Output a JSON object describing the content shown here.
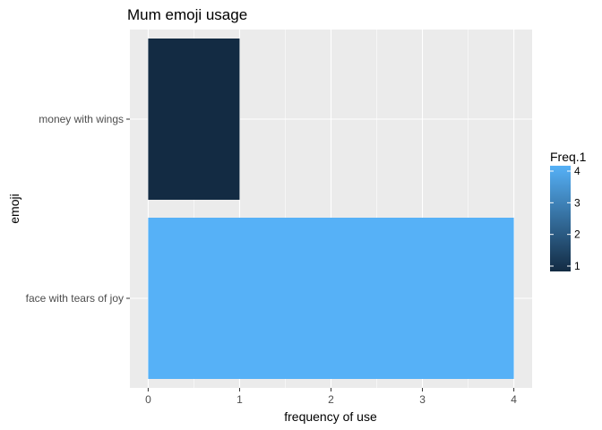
{
  "chart_data": {
    "type": "bar",
    "orientation": "horizontal",
    "title": "Mum emoji usage",
    "xlabel": "frequency of use",
    "ylabel": "emoji",
    "categories": [
      "face with tears of joy",
      "money with wings"
    ],
    "values": [
      4,
      1
    ],
    "xlim": [
      -0.2,
      4.2
    ],
    "xticks": [
      "0",
      "1",
      "2",
      "3",
      "4"
    ],
    "grid": true,
    "background_color": "#ebebeb",
    "grid_color": "#ffffff",
    "legend": {
      "title": "Freq.1",
      "placement": "right",
      "type": "colorbar",
      "min": 1,
      "max": 4,
      "ticks": [
        "1",
        "2",
        "3",
        "4"
      ],
      "color_low": "#132b43",
      "color_high": "#56b1f7"
    }
  }
}
